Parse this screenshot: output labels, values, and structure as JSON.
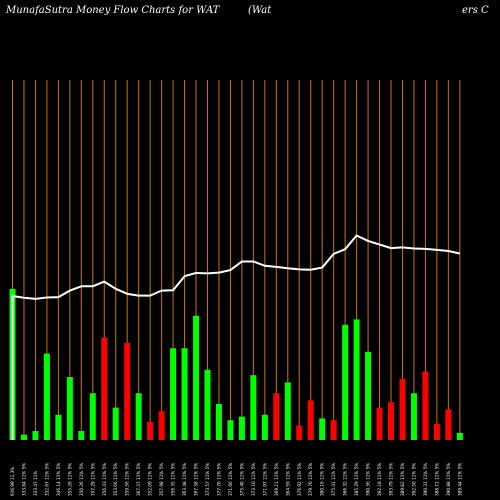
{
  "header": {
    "left": "MunafaSutra  Money Flow  Charts for WAT",
    "center": "(Wat",
    "right": "ers C"
  },
  "colors": {
    "background": "#000000",
    "grid": "#c87800",
    "up": "#00ff00",
    "down": "#ff0000",
    "line": "#ffffff"
  },
  "chart_data": {
    "type": "bar",
    "grid": true,
    "series": [
      {
        "values": [
          42,
          1.5,
          2.5,
          24,
          7,
          17.5,
          2.5,
          13,
          28.5,
          9,
          27,
          13,
          5,
          8,
          25.5,
          25.5,
          34.5,
          19.5,
          10,
          5.5,
          6.5,
          18,
          7,
          13,
          16,
          4,
          11,
          6,
          5.5,
          32,
          33.5,
          24.5,
          9,
          10.5,
          17,
          13,
          19,
          4.5,
          8.5,
          2
        ],
        "colors": [
          "up",
          "up",
          "up",
          "up",
          "up",
          "up",
          "up",
          "up",
          "down",
          "up",
          "down",
          "up",
          "down",
          "down",
          "up",
          "up",
          "up",
          "up",
          "up",
          "up",
          "up",
          "up",
          "up",
          "down",
          "up",
          "down",
          "down",
          "up",
          "down",
          "up",
          "up",
          "up",
          "down",
          "down",
          "down",
          "up",
          "down",
          "down",
          "down",
          "up"
        ]
      },
      {
        "values": [
          40,
          39.5,
          39.2,
          39.6,
          39.7,
          41.5,
          42.7,
          42.7,
          44,
          42,
          40.6,
          40.1,
          40.1,
          41.5,
          41.6,
          45.5,
          46.4,
          46.3,
          46.5,
          47.2,
          49.6,
          49.6,
          48.4,
          48.1,
          47.7,
          47.4,
          47.3,
          47.9,
          51.7,
          53,
          56.8,
          55.3,
          54.3,
          53.3,
          53.5,
          53.2,
          53.1,
          52.8,
          52.5,
          51.8
        ]
      }
    ],
    "ylim": [
      0,
      100
    ],
    "tick_labels": [
      "936.99 11.3%",
      "333.84 11% 5%",
      "333.47 11%",
      "332.67 11% 5%",
      "346.14 11% 5%",
      "355.26 11% 5%",
      "350.26 11% 5%",
      "357.29 11% 5%",
      "356.43 11% 5%",
      "353.66 11% 5%",
      "359.56 11% 5%",
      "367.37 11% 5%",
      "352.09 11% 5%",
      "357.98 11% 5%",
      "356.35 11% 5%",
      "363.48 11% 5%",
      "367.58 11% 5%",
      "373.57 11% 5%",
      "377.70 11% 5%",
      "371.66 11% 5%",
      "375.40 11% 5%",
      "373.10 11% 5%",
      "371.97 11% 5%",
      "369.21 11% 5%",
      "364.59 11% 5%",
      "376.92 11% 5%",
      "379.70 11% 5%",
      "380.16 11% 5%",
      "375.41 11% 5%",
      "366.32 11% 5%",
      "385.29 11% 5%",
      "390.56 11% 5%",
      "392.18 11% 5%",
      "393.79 11% 5%",
      "389.82 11% 5%",
      "392.50 11% 5%",
      "390.31 11% 5%",
      "388.72 11% 5%",
      "390.88 11% 5%",
      "389.44 11% 5%"
    ]
  }
}
